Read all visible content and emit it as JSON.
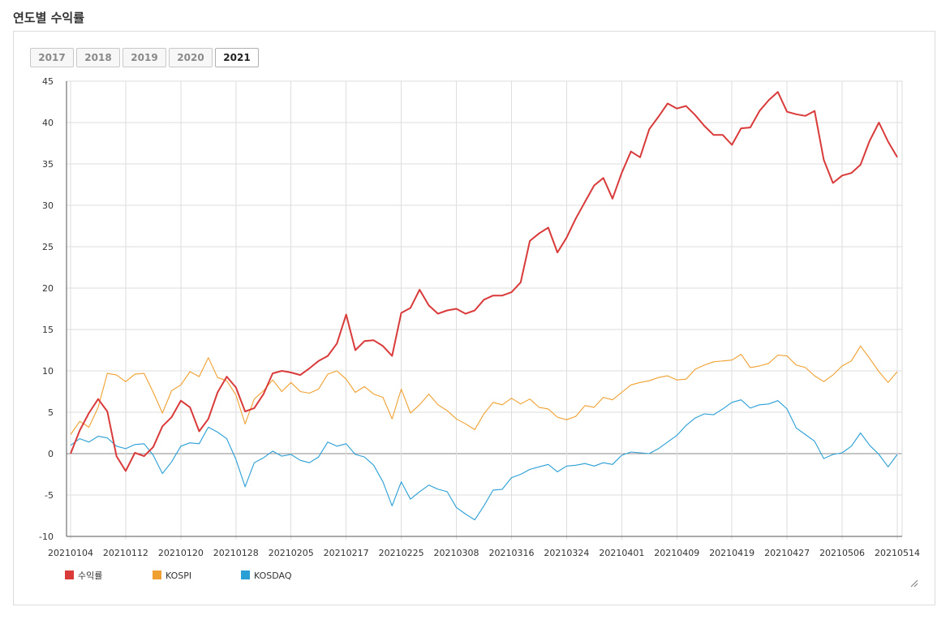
{
  "page_title": "연도별 수익률",
  "year_tabs": [
    {
      "label": "2017",
      "active": false
    },
    {
      "label": "2018",
      "active": false
    },
    {
      "label": "2019",
      "active": false
    },
    {
      "label": "2020",
      "active": false
    },
    {
      "label": "2021",
      "active": true
    }
  ],
  "chart_data": {
    "type": "line",
    "title": "",
    "xlabel": "",
    "ylabel": "",
    "ylim": [
      -10,
      45
    ],
    "yticks": [
      -10,
      -5,
      0,
      5,
      10,
      15,
      20,
      25,
      30,
      35,
      40,
      45
    ],
    "grid": true,
    "legend_position": "bottom-left",
    "x_tick_labels": [
      "20210104",
      "20210112",
      "20210120",
      "20210128",
      "20210205",
      "20210217",
      "20210225",
      "20210308",
      "20210316",
      "20210324",
      "20210401",
      "20210409",
      "20210419",
      "20210427",
      "20210506",
      "20210514"
    ],
    "x_tick_positions": [
      0,
      6,
      12,
      18,
      24,
      30,
      36,
      42,
      48,
      54,
      60,
      66,
      72,
      78,
      84,
      90
    ],
    "series": [
      {
        "name": "수익률",
        "color": "#d93a3a",
        "values": [
          0,
          2.8,
          4.9,
          6.6,
          5.1,
          -0.3,
          -2.1,
          0.1,
          -0.3,
          0.8,
          3.3,
          4.4,
          6.4,
          5.6,
          2.7,
          4.2,
          7.4,
          9.3,
          8.0,
          5.1,
          5.5,
          7.2,
          9.7,
          10.0,
          9.8,
          9.5,
          10.3,
          11.2,
          11.8,
          13.3,
          16.8,
          12.5,
          13.6,
          13.7,
          13.0,
          11.8,
          17.0,
          17.6,
          19.8,
          17.9,
          16.9,
          17.3,
          17.5,
          16.9,
          17.3,
          18.6,
          19.1,
          19.1,
          19.5,
          20.7,
          25.7,
          26.6,
          27.3,
          24.3,
          26.1,
          28.4,
          30.4,
          32.4,
          33.3,
          30.8,
          33.9,
          36.5,
          35.8,
          39.2,
          40.7,
          42.3,
          41.7,
          42.0,
          40.9,
          39.6,
          38.5,
          38.5,
          37.3,
          39.3,
          39.4,
          41.4,
          42.7,
          43.7,
          41.3,
          41.0,
          40.8,
          41.4,
          35.5,
          32.7,
          33.6,
          33.9,
          34.9,
          37.8,
          40.0,
          37.7,
          35.8
        ]
      },
      {
        "name": "KOSPI",
        "color": "#f0a030",
        "values": [
          2.3,
          3.9,
          3.2,
          5.6,
          9.7,
          9.5,
          8.7,
          9.6,
          9.7,
          7.4,
          4.9,
          7.6,
          8.3,
          9.9,
          9.3,
          11.6,
          9.2,
          8.8,
          7.1,
          3.6,
          6.6,
          7.6,
          8.9,
          7.5,
          8.6,
          7.5,
          7.3,
          7.8,
          9.6,
          10.0,
          9.0,
          7.4,
          8.1,
          7.2,
          6.8,
          4.2,
          7.8,
          4.9,
          5.9,
          7.2,
          5.9,
          5.2,
          4.2,
          3.6,
          2.9,
          4.8,
          6.2,
          5.9,
          6.7,
          6.0,
          6.6,
          5.6,
          5.4,
          4.4,
          4.1,
          4.5,
          5.8,
          5.6,
          6.8,
          6.5,
          7.4,
          8.3,
          8.6,
          8.8,
          9.2,
          9.4,
          8.9,
          9.0,
          10.2,
          10.7,
          11.1,
          11.2,
          11.3,
          12.0,
          10.4,
          10.6,
          10.9,
          11.9,
          11.8,
          10.7,
          10.4,
          9.4,
          8.7,
          9.5,
          10.6,
          11.2,
          13.0,
          11.5,
          9.9,
          8.6,
          9.9
        ]
      },
      {
        "name": "KOSDAQ",
        "color": "#2a9fd6",
        "values": [
          1.0,
          1.8,
          1.4,
          2.1,
          1.9,
          0.9,
          0.6,
          1.1,
          1.2,
          -0.2,
          -2.4,
          -1.0,
          0.9,
          1.3,
          1.2,
          3.2,
          2.6,
          1.8,
          -0.7,
          -4.0,
          -1.1,
          -0.5,
          0.3,
          -0.3,
          -0.1,
          -0.8,
          -1.1,
          -0.4,
          1.4,
          0.9,
          1.2,
          -0.1,
          -0.4,
          -1.4,
          -3.4,
          -6.3,
          -3.4,
          -5.5,
          -4.6,
          -3.8,
          -4.3,
          -4.6,
          -6.5,
          -7.3,
          -8.0,
          -6.3,
          -4.4,
          -4.3,
          -2.9,
          -2.5,
          -1.9,
          -1.6,
          -1.3,
          -2.2,
          -1.5,
          -1.4,
          -1.2,
          -1.5,
          -1.1,
          -1.3,
          -0.2,
          0.2,
          0.1,
          0.0,
          0.6,
          1.4,
          2.2,
          3.4,
          4.3,
          4.8,
          4.7,
          5.4,
          6.2,
          6.5,
          5.5,
          5.9,
          6.0,
          6.4,
          5.4,
          3.1,
          2.3,
          1.5,
          -0.6,
          -0.1,
          0.1,
          0.9,
          2.5,
          1.0,
          -0.1,
          -1.6,
          -0.1
        ]
      }
    ]
  }
}
